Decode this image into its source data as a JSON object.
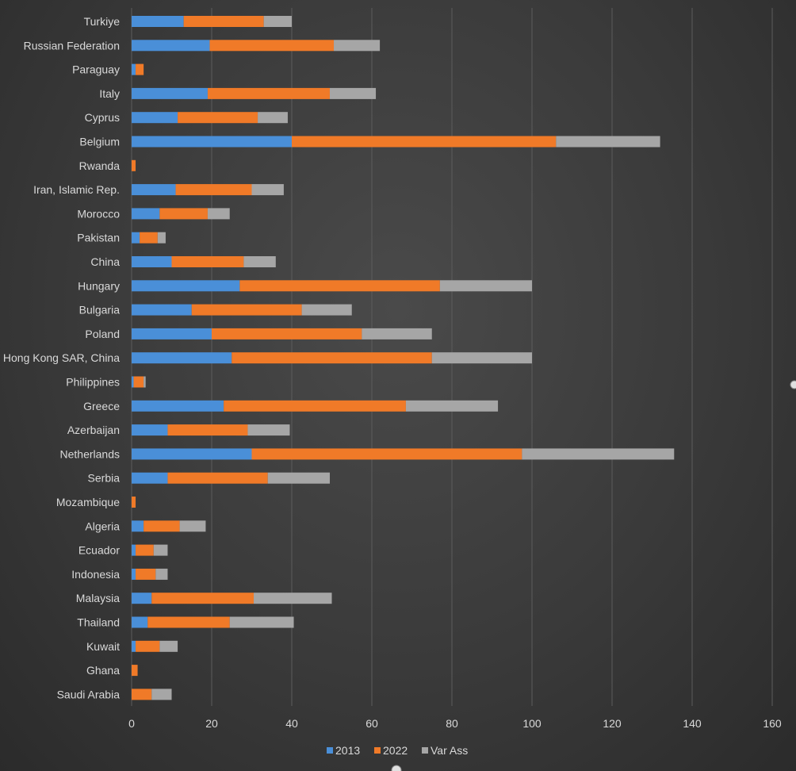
{
  "chart_data": {
    "type": "bar",
    "orientation": "horizontal",
    "stacked": true,
    "title": "",
    "xlabel": "",
    "ylabel": "",
    "xlim": [
      0,
      160
    ],
    "x_ticks": [
      "0",
      "20",
      "40",
      "60",
      "80",
      "100",
      "120",
      "140",
      "160"
    ],
    "grid": true,
    "legend_position": "bottom",
    "categories": [
      "Turkiye",
      "Russian Federation",
      "Paraguay",
      "Italy",
      "Cyprus",
      "Belgium",
      "Rwanda",
      "Iran, Islamic Rep.",
      "Morocco",
      "Pakistan",
      "China",
      "Hungary",
      "Bulgaria",
      "Poland",
      "Hong Kong SAR, China",
      "Philippines",
      "Greece",
      "Azerbaijan",
      "Netherlands",
      "Serbia",
      "Mozambique",
      "Algeria",
      "Ecuador",
      "Indonesia",
      "Malaysia",
      "Thailand",
      "Kuwait",
      "Ghana",
      "Saudi Arabia"
    ],
    "series": [
      {
        "name": "2013",
        "color": "#4a8fd8",
        "values": [
          13,
          19.5,
          1,
          19,
          11.5,
          40,
          0,
          11,
          7,
          2,
          10,
          27,
          15,
          20,
          25,
          0.5,
          23,
          9,
          30,
          9,
          0,
          3,
          1,
          1,
          5,
          4,
          1,
          0,
          0
        ]
      },
      {
        "name": "2022",
        "color": "#f07a28",
        "values": [
          20,
          31,
          2,
          30.5,
          20,
          66,
          1,
          19,
          12,
          4.5,
          18,
          50,
          27.5,
          37.5,
          50,
          2.5,
          45.5,
          20,
          67.5,
          25,
          1,
          9,
          4.5,
          5,
          25.5,
          20.5,
          6,
          1.5,
          5
        ]
      },
      {
        "name": "Var Ass",
        "color": "#a6a6a6",
        "values": [
          7,
          11.5,
          0,
          11.5,
          7.5,
          26,
          0,
          8,
          5.5,
          2,
          8,
          23,
          12.5,
          17.5,
          25,
          0.5,
          23,
          10.5,
          38,
          15.5,
          0,
          6.5,
          3.5,
          3,
          19.5,
          16,
          4.5,
          0,
          5
        ]
      }
    ]
  }
}
